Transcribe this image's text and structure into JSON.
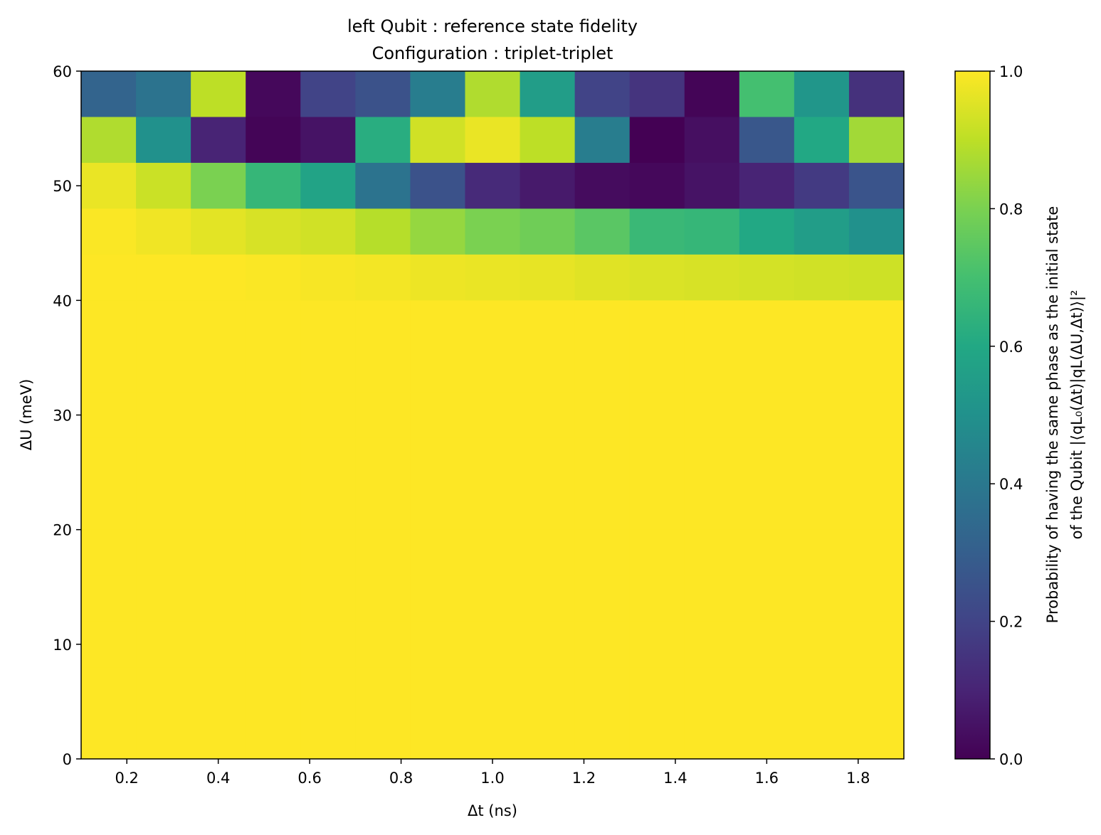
{
  "chart_data": {
    "type": "heatmap",
    "title_line1": "left Qubit : reference state fidelity",
    "title_line2": "Configuration : triplet-triplet",
    "xlabel": "Δt (ns)",
    "ylabel": "ΔU (meV)",
    "colorbar_label_line1": "Probability of having the same phase as the initial state",
    "colorbar_label_line2": "of the Qubit |⟨qL₀(Δt)|qL(ΔU,Δt)⟩|²",
    "xlim": [
      0.1,
      1.9
    ],
    "ylim": [
      0,
      60
    ],
    "clim": [
      0.0,
      1.0
    ],
    "colormap": "viridis",
    "x_centers": [
      0.16,
      0.28,
      0.4,
      0.52,
      0.64,
      0.76,
      0.88,
      1.0,
      1.12,
      1.24,
      1.36,
      1.48,
      1.6,
      1.72,
      1.84
    ],
    "x_ticks": [
      "0.2",
      "0.4",
      "0.6",
      "0.8",
      "1.0",
      "1.2",
      "1.4",
      "1.6",
      "1.8"
    ],
    "x_tick_values": [
      0.2,
      0.4,
      0.6,
      0.8,
      1.0,
      1.2,
      1.4,
      1.6,
      1.8
    ],
    "y_ticks": [
      "0",
      "10",
      "20",
      "30",
      "40",
      "50",
      "60"
    ],
    "y_tick_values": [
      0,
      10,
      20,
      30,
      40,
      50,
      60
    ],
    "colorbar_ticks": [
      "0.0",
      "0.2",
      "0.4",
      "0.6",
      "0.8",
      "1.0"
    ],
    "colorbar_tick_values": [
      0.0,
      0.2,
      0.4,
      0.6,
      0.8,
      1.0
    ],
    "row_band_edges": [
      0,
      4,
      8,
      12,
      16,
      20,
      24,
      28,
      32,
      36,
      40,
      44,
      48,
      52,
      56,
      60
    ],
    "values_top_to_bottom": [
      [
        0.32,
        0.38,
        0.9,
        0.02,
        0.2,
        0.25,
        0.42,
        0.88,
        0.55,
        0.2,
        0.15,
        0.01,
        0.7,
        0.52,
        0.14
      ],
      [
        0.88,
        0.5,
        0.1,
        0.01,
        0.05,
        0.62,
        0.93,
        0.97,
        0.9,
        0.42,
        0.0,
        0.04,
        0.27,
        0.6,
        0.86
      ],
      [
        0.97,
        0.92,
        0.8,
        0.66,
        0.58,
        0.38,
        0.25,
        0.12,
        0.07,
        0.03,
        0.02,
        0.05,
        0.1,
        0.17,
        0.26
      ],
      [
        0.995,
        0.98,
        0.96,
        0.94,
        0.93,
        0.89,
        0.84,
        0.8,
        0.78,
        0.74,
        0.67,
        0.66,
        0.6,
        0.55,
        0.5
      ],
      [
        1.0,
        1.0,
        1.0,
        0.995,
        0.99,
        0.985,
        0.975,
        0.97,
        0.965,
        0.955,
        0.945,
        0.94,
        0.935,
        0.93,
        0.925
      ],
      [
        1.0,
        1.0,
        1.0,
        1.0,
        1.0,
        1.0,
        1.0,
        1.0,
        1.0,
        1.0,
        1.0,
        1.0,
        1.0,
        1.0,
        1.0
      ],
      [
        1.0,
        1.0,
        1.0,
        1.0,
        1.0,
        1.0,
        1.0,
        1.0,
        1.0,
        1.0,
        1.0,
        1.0,
        1.0,
        1.0,
        1.0
      ],
      [
        1.0,
        1.0,
        1.0,
        1.0,
        1.0,
        1.0,
        1.0,
        1.0,
        1.0,
        1.0,
        1.0,
        1.0,
        1.0,
        1.0,
        1.0
      ],
      [
        1.0,
        1.0,
        1.0,
        1.0,
        1.0,
        1.0,
        1.0,
        1.0,
        1.0,
        1.0,
        1.0,
        1.0,
        1.0,
        1.0,
        1.0
      ],
      [
        1.0,
        1.0,
        1.0,
        1.0,
        1.0,
        1.0,
        1.0,
        1.0,
        1.0,
        1.0,
        1.0,
        1.0,
        1.0,
        1.0,
        1.0
      ],
      [
        1.0,
        1.0,
        1.0,
        1.0,
        1.0,
        1.0,
        1.0,
        1.0,
        1.0,
        1.0,
        1.0,
        1.0,
        1.0,
        1.0,
        1.0
      ],
      [
        1.0,
        1.0,
        1.0,
        1.0,
        1.0,
        1.0,
        1.0,
        1.0,
        1.0,
        1.0,
        1.0,
        1.0,
        1.0,
        1.0,
        1.0
      ],
      [
        1.0,
        1.0,
        1.0,
        1.0,
        1.0,
        1.0,
        1.0,
        1.0,
        1.0,
        1.0,
        1.0,
        1.0,
        1.0,
        1.0,
        1.0
      ],
      [
        1.0,
        1.0,
        1.0,
        1.0,
        1.0,
        1.0,
        1.0,
        1.0,
        1.0,
        1.0,
        1.0,
        1.0,
        1.0,
        1.0,
        1.0
      ],
      [
        1.0,
        1.0,
        1.0,
        1.0,
        1.0,
        1.0,
        1.0,
        1.0,
        1.0,
        1.0,
        1.0,
        1.0,
        1.0,
        1.0,
        1.0
      ]
    ]
  }
}
